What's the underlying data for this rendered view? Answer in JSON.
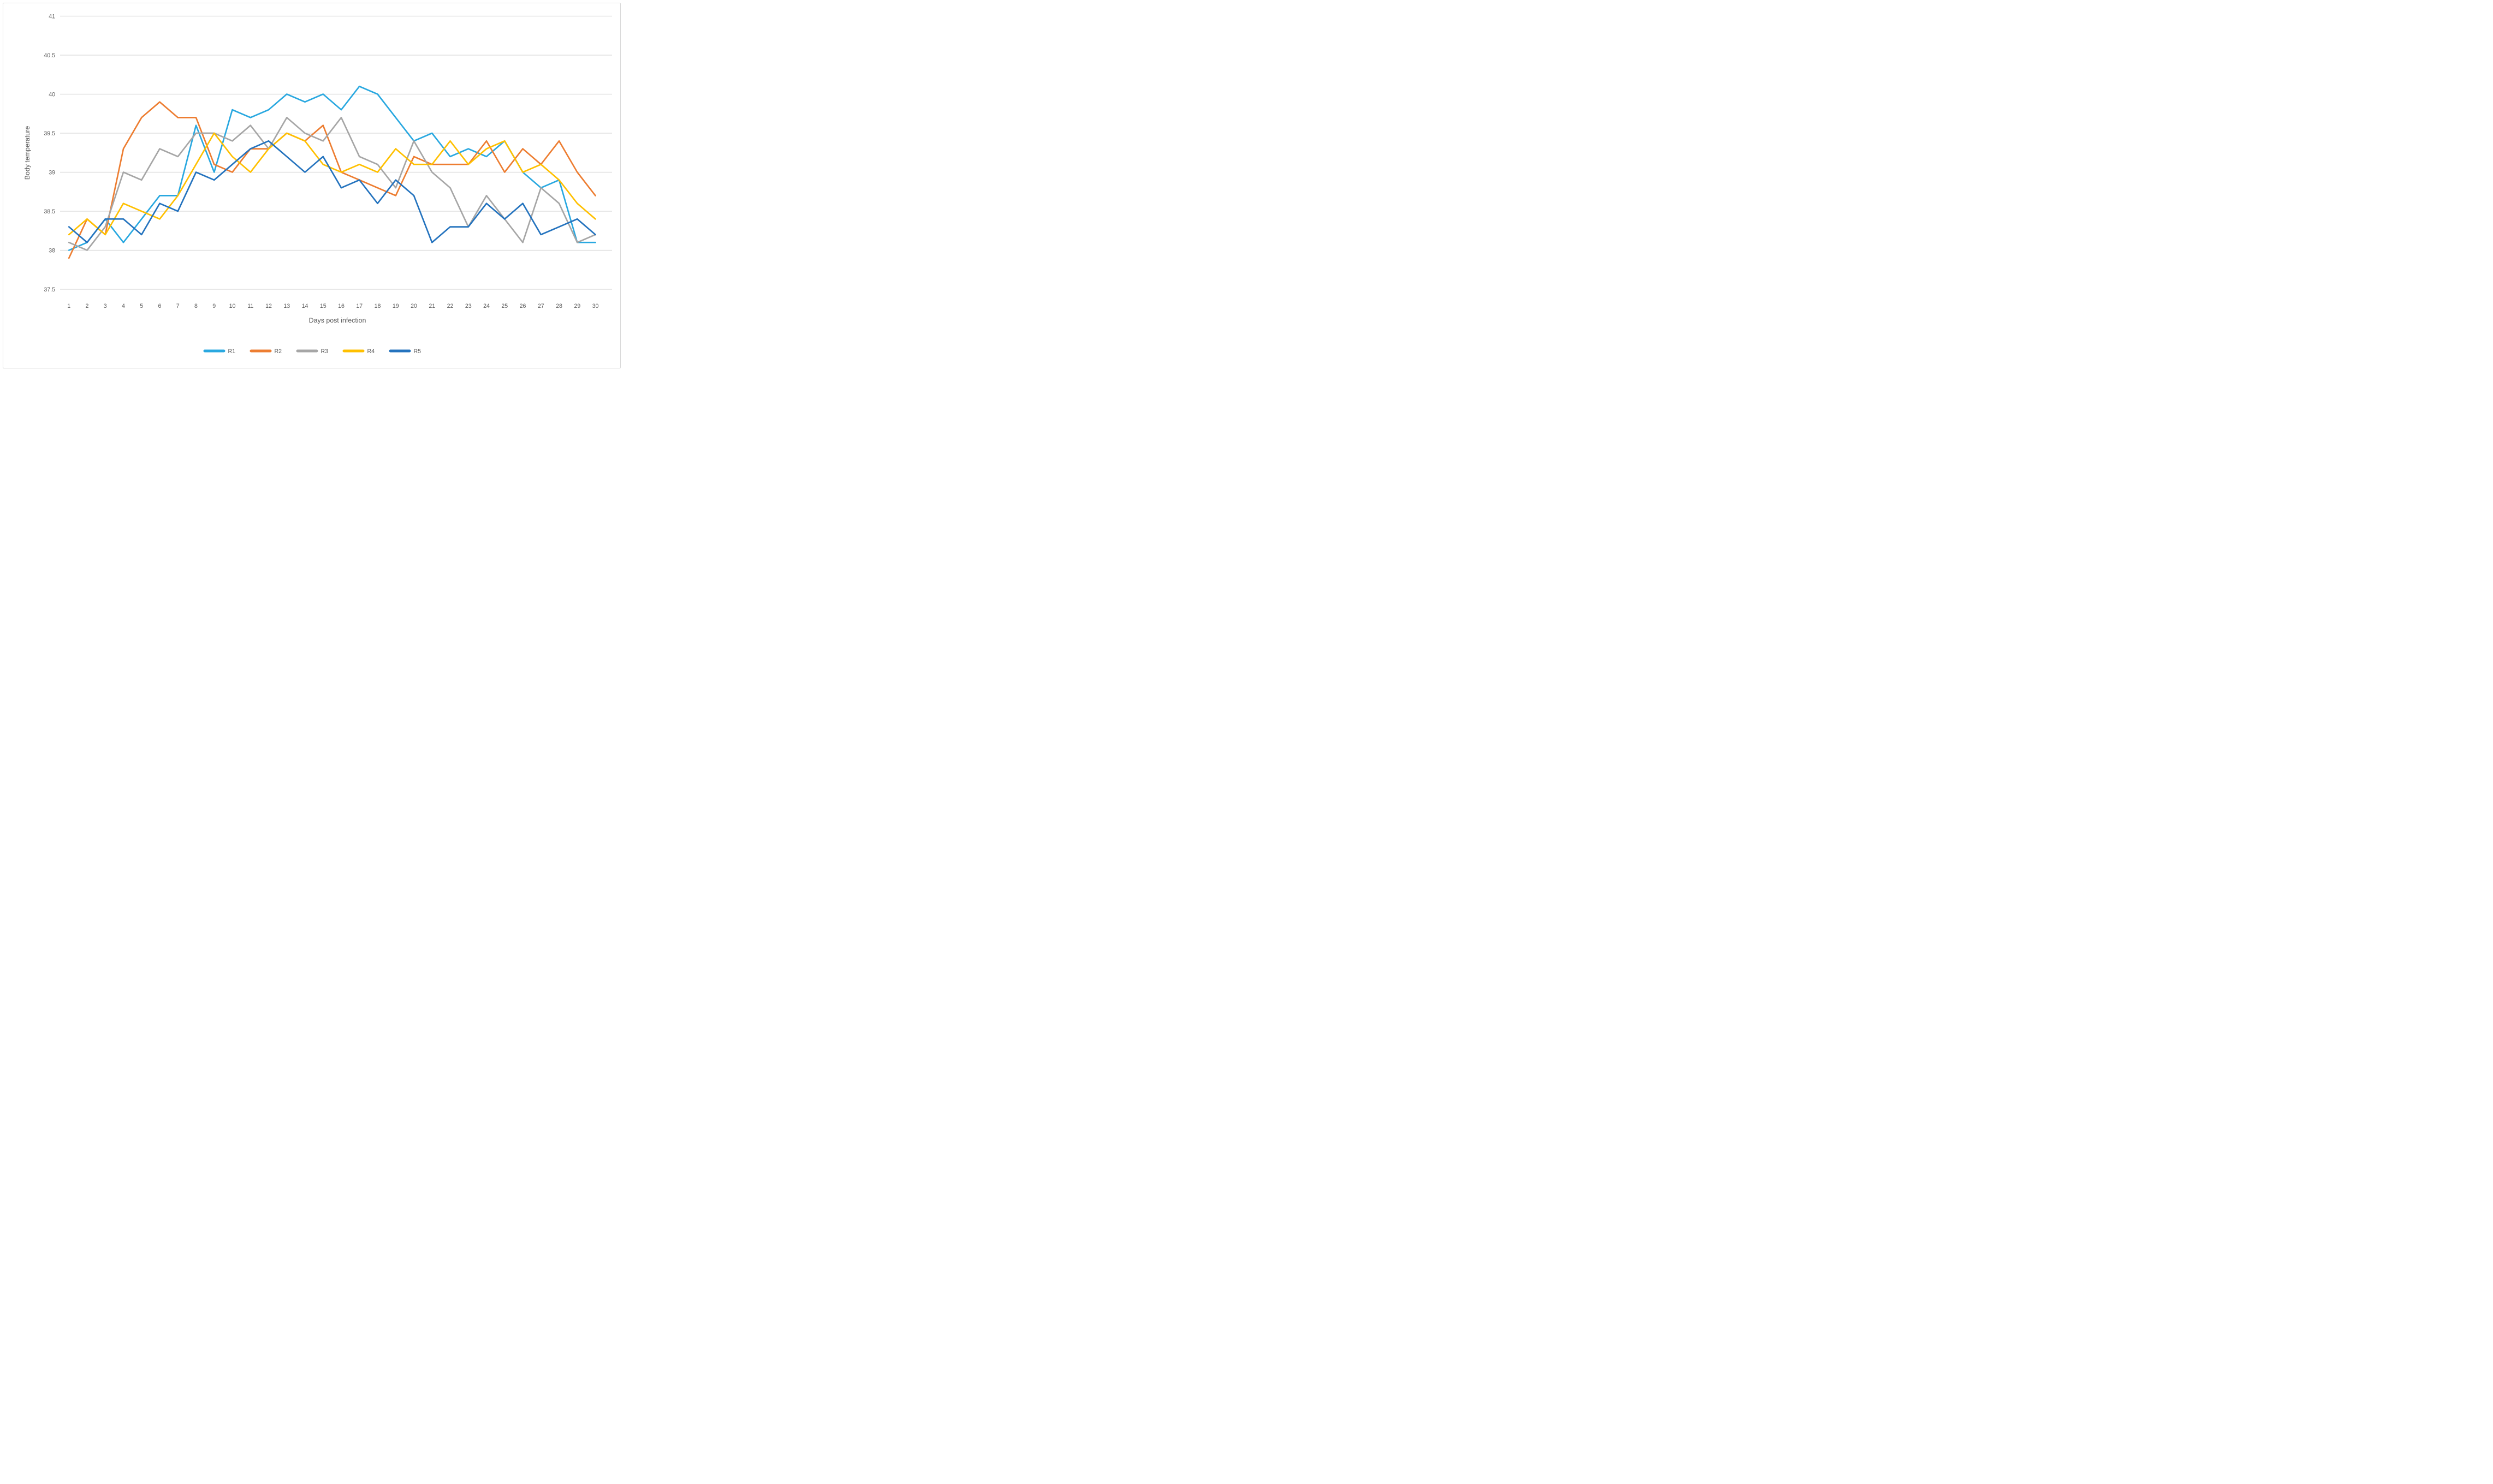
{
  "chart_data": {
    "type": "line",
    "title": "",
    "xlabel": "Days post infection",
    "ylabel": "Body temperature",
    "x": [
      1,
      2,
      3,
      4,
      5,
      6,
      7,
      8,
      9,
      10,
      11,
      12,
      13,
      14,
      15,
      16,
      17,
      18,
      19,
      20,
      21,
      22,
      23,
      24,
      25,
      26,
      27,
      28,
      29,
      30
    ],
    "series": [
      {
        "name": "R1",
        "color": "#29a8e0",
        "values": [
          38.0,
          38.1,
          38.4,
          38.1,
          38.4,
          38.7,
          38.7,
          39.6,
          39.0,
          39.8,
          39.7,
          39.8,
          40.0,
          39.9,
          40.0,
          39.8,
          40.1,
          40.0,
          39.7,
          39.4,
          39.5,
          39.2,
          39.3,
          39.2,
          39.4,
          39.0,
          38.8,
          38.9,
          38.1,
          38.1
        ]
      },
      {
        "name": "R2",
        "color": "#ed7d31",
        "values": [
          37.9,
          38.4,
          38.2,
          39.3,
          39.7,
          39.9,
          39.7,
          39.7,
          39.1,
          39.0,
          39.3,
          39.3,
          39.5,
          39.4,
          39.6,
          39.0,
          38.9,
          38.8,
          38.7,
          39.2,
          39.1,
          39.1,
          39.1,
          39.4,
          39.0,
          39.3,
          39.1,
          39.4,
          39.0,
          38.7
        ]
      },
      {
        "name": "R3",
        "color": "#a6a6a6",
        "values": [
          38.1,
          38.0,
          38.3,
          39.0,
          38.9,
          39.3,
          39.2,
          39.5,
          39.5,
          39.4,
          39.6,
          39.3,
          39.7,
          39.5,
          39.4,
          39.7,
          39.2,
          39.1,
          38.8,
          39.4,
          39.0,
          38.8,
          38.3,
          38.7,
          38.4,
          38.1,
          38.8,
          38.6,
          38.1,
          38.2
        ]
      },
      {
        "name": "R4",
        "color": "#ffc000",
        "values": [
          38.2,
          38.4,
          38.2,
          38.6,
          38.5,
          38.4,
          38.7,
          39.1,
          39.5,
          39.2,
          39.0,
          39.3,
          39.5,
          39.4,
          39.1,
          39.0,
          39.1,
          39.0,
          39.3,
          39.1,
          39.1,
          39.4,
          39.1,
          39.3,
          39.4,
          39.0,
          39.1,
          38.9,
          38.6,
          38.4
        ]
      },
      {
        "name": "R5",
        "color": "#2473be",
        "values": [
          38.3,
          38.1,
          38.4,
          38.4,
          38.2,
          38.6,
          38.5,
          39.0,
          38.9,
          39.1,
          39.3,
          39.4,
          39.2,
          39.0,
          39.2,
          38.8,
          38.9,
          38.6,
          38.9,
          38.7,
          38.1,
          38.3,
          38.3,
          38.6,
          38.4,
          38.6,
          38.2,
          38.3,
          38.4,
          38.2
        ]
      }
    ],
    "y_ticks": [
      41,
      40.5,
      40,
      39.5,
      39,
      38.5,
      38,
      37.5
    ],
    "ylim": [
      37.5,
      41
    ],
    "grid": true,
    "legend_position": "bottom",
    "gridline_color": "#d9d9d9",
    "text_color": "#595959",
    "background_color": "#ffffff"
  }
}
